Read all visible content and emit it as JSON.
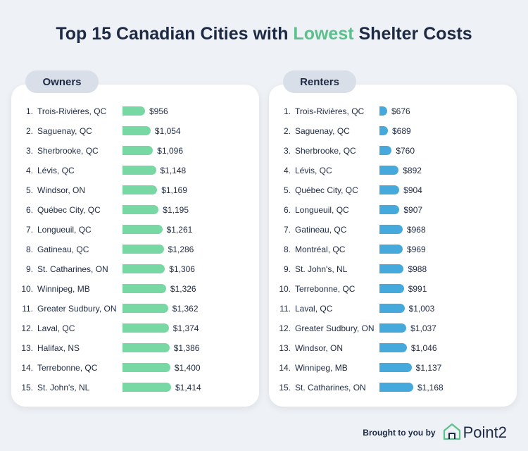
{
  "title": {
    "part1": "Top 15 Canadian Cities with ",
    "highlight": "Lowest",
    "part2": " Shelter Costs"
  },
  "colors": {
    "owners_bar": "#78d8a3",
    "renters_bar": "#45a9dc",
    "title_highlight": "#5cc08c"
  },
  "footer": {
    "brought_by": "Brought to you by",
    "brand": "Point2",
    "logo_icon": "house-logo-icon"
  },
  "chart_data": [
    {
      "type": "bar",
      "orientation": "horizontal",
      "title": "Owners",
      "ranks": [
        "1.",
        "2.",
        "3.",
        "4.",
        "5.",
        "6.",
        "7.",
        "8.",
        "9.",
        "10.",
        "11.",
        "12.",
        "13.",
        "14.",
        "15."
      ],
      "categories": [
        "Trois-Rivières, QC",
        "Saguenay, QC",
        "Sherbrooke, QC",
        "Lévis, QC",
        "Windsor, ON",
        "Québec City, QC",
        "Longueuil, QC",
        "Gatineau, QC",
        "St. Catharines, ON",
        "Winnipeg, MB",
        "Greater Sudbury, ON",
        "Laval, QC",
        "Halifax, NS",
        "Terrebonne, QC",
        "St. John's, NL"
      ],
      "values": [
        956,
        1054,
        1096,
        1148,
        1169,
        1195,
        1261,
        1286,
        1306,
        1326,
        1362,
        1374,
        1386,
        1400,
        1414
      ],
      "labels": [
        "$956",
        "$1,054",
        "$1,096",
        "$1,148",
        "$1,169",
        "$1,195",
        "$1,261",
        "$1,286",
        "$1,306",
        "$1,326",
        "$1,362",
        "$1,374",
        "$1,386",
        "$1,400",
        "$1,414"
      ],
      "xlim": [
        0,
        1414
      ]
    },
    {
      "type": "bar",
      "orientation": "horizontal",
      "title": "Renters",
      "ranks": [
        "1.",
        "2.",
        "3.",
        "4.",
        "5.",
        "6.",
        "7.",
        "8.",
        "9.",
        "10.",
        "11.",
        "12.",
        "13.",
        "14.",
        "15."
      ],
      "categories": [
        "Trois-Rivières, QC",
        "Saguenay, QC",
        "Sherbrooke, QC",
        "Lévis, QC",
        "Québec City, QC",
        "Longueuil, QC",
        "Gatineau, QC",
        "Montréal, QC",
        "St. John's, NL",
        "Terrebonne, QC",
        "Laval, QC",
        "Greater Sudbury, ON",
        "Windsor, ON",
        "Winnipeg, MB",
        "St. Catharines, ON"
      ],
      "values": [
        676,
        689,
        760,
        892,
        904,
        907,
        968,
        969,
        988,
        991,
        1003,
        1037,
        1046,
        1137,
        1168
      ],
      "labels": [
        "$676",
        "$689",
        "$760",
        "$892",
        "$904",
        "$907",
        "$968",
        "$969",
        "$988",
        "$991",
        "$1,003",
        "$1,037",
        "$1,046",
        "$1,137",
        "$1,168"
      ],
      "xlim": [
        650,
        1168
      ]
    }
  ]
}
